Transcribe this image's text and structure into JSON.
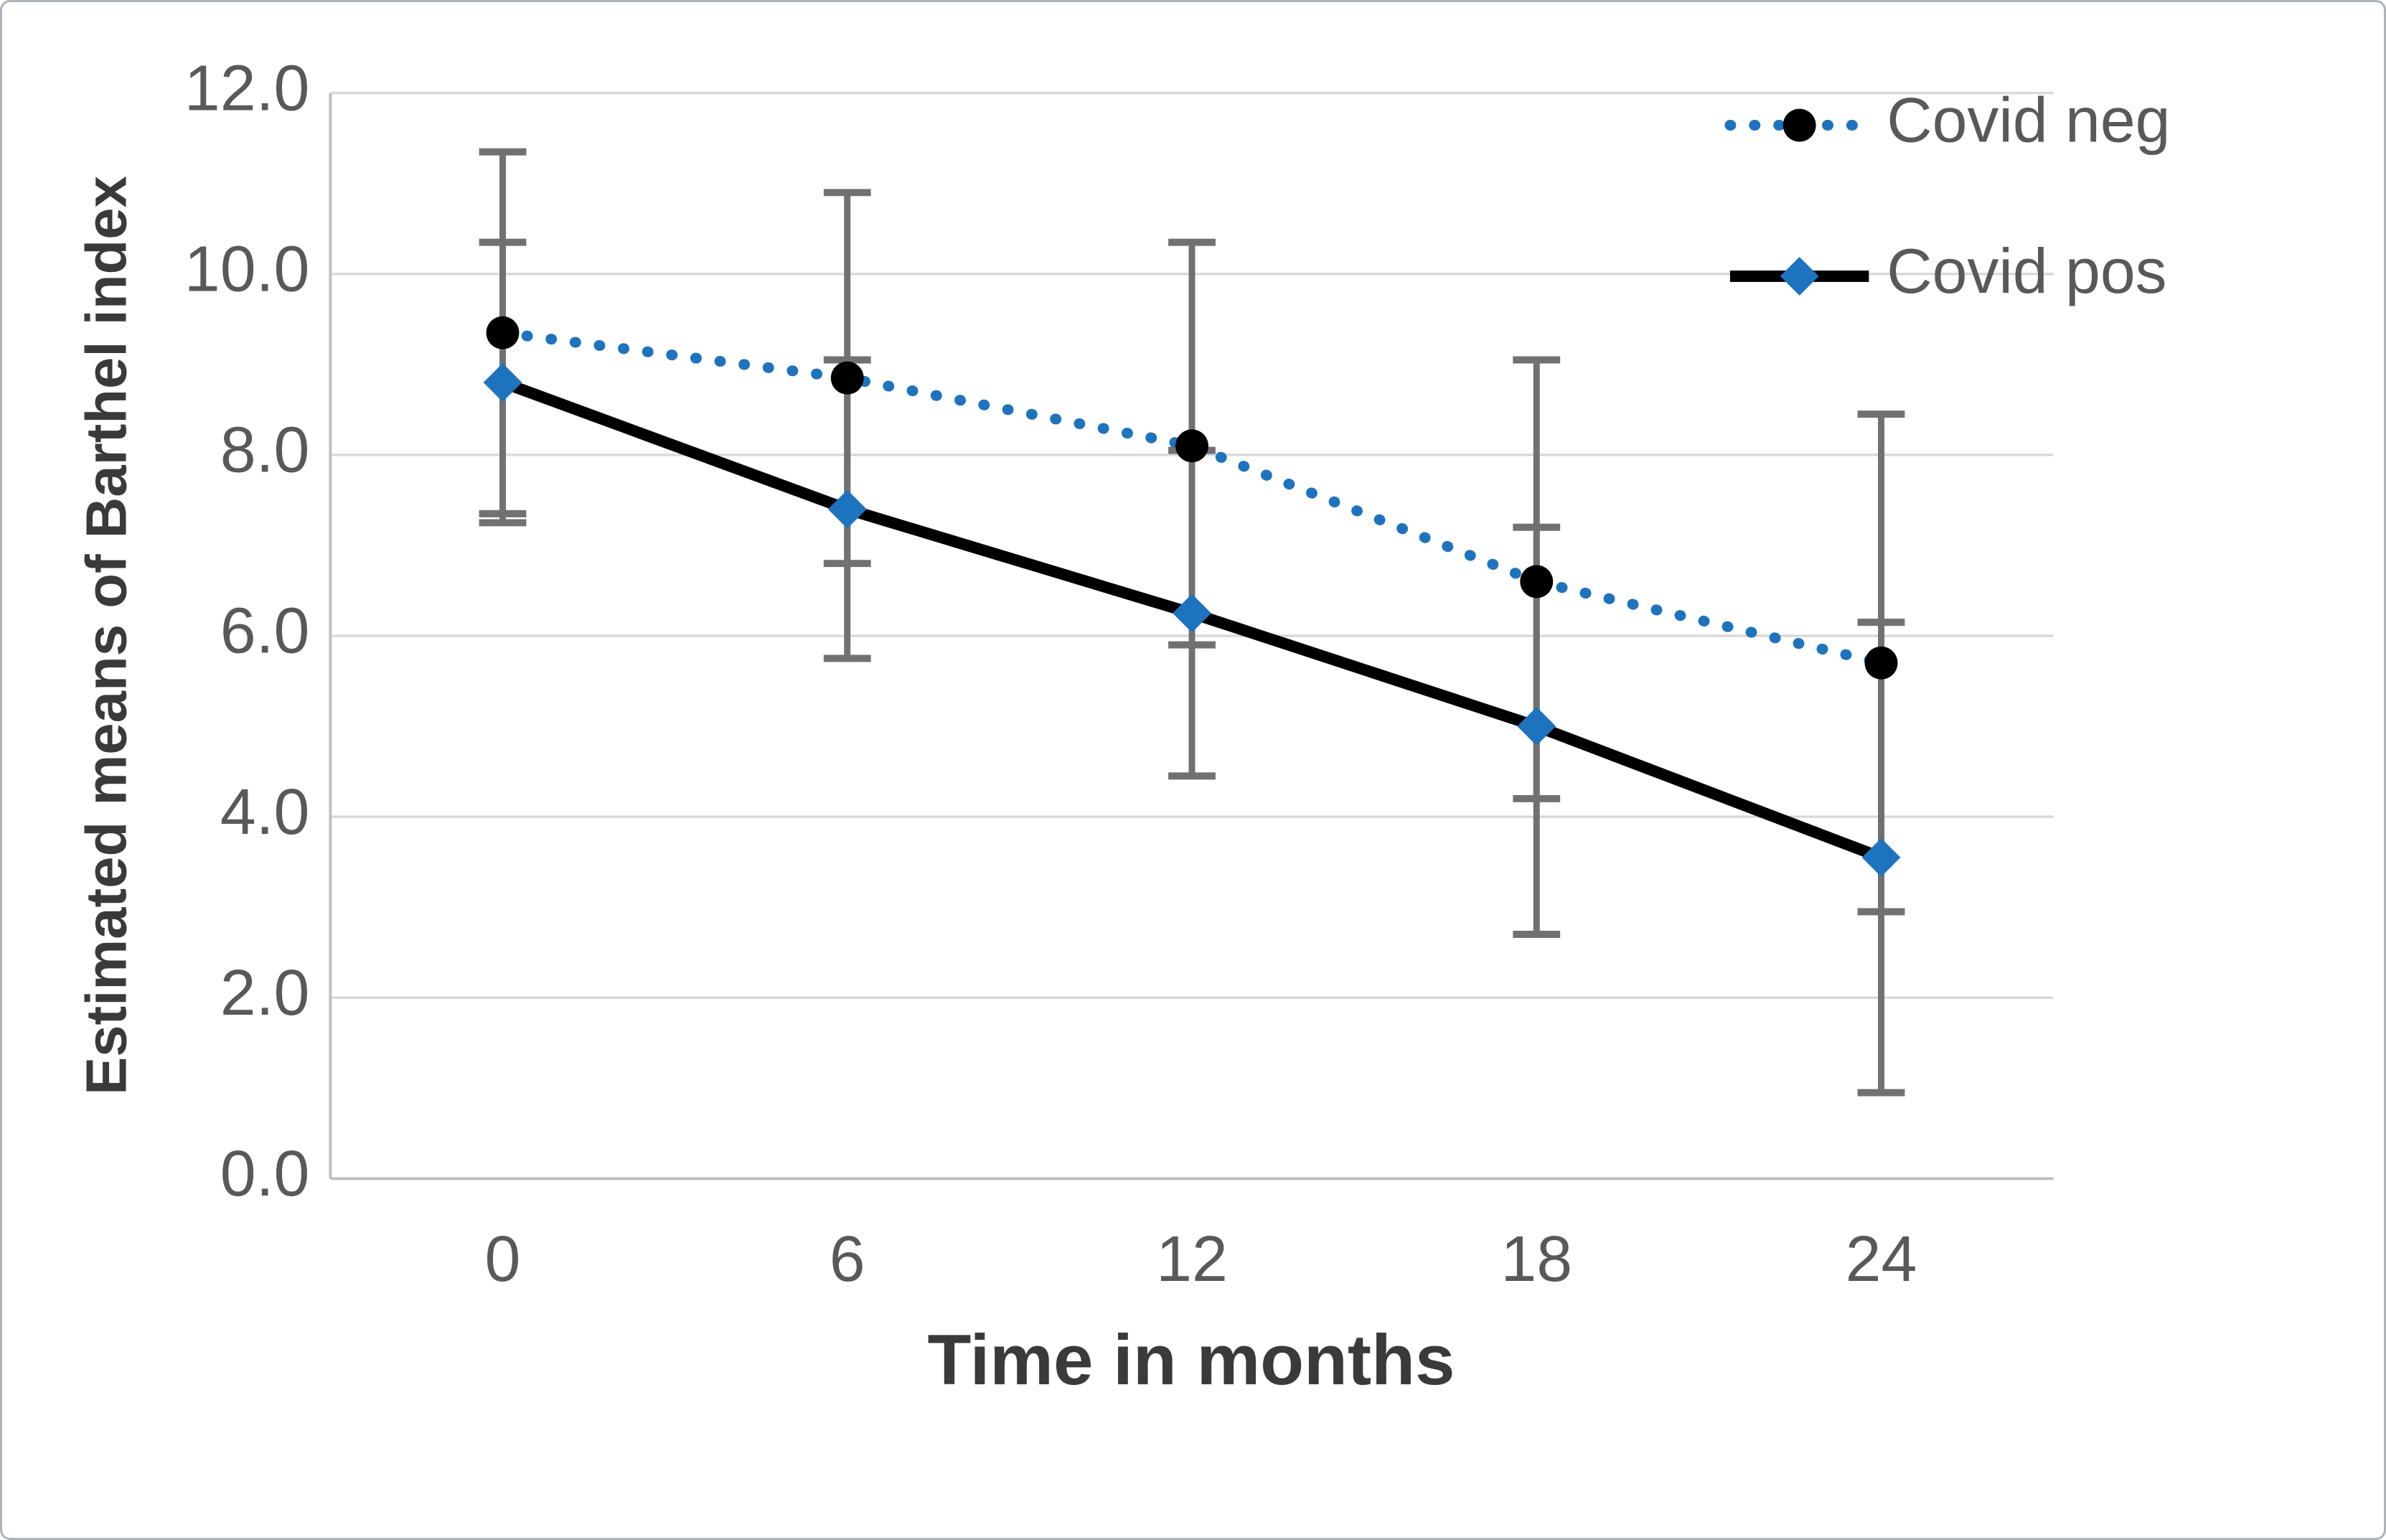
{
  "figure": {
    "background": "#ffffff",
    "border_color": "#aeb4b9"
  },
  "chart_data": {
    "type": "line",
    "title": "",
    "xlabel": "Time in months",
    "ylabel": "Estimated means of Barthel index",
    "categories": [
      0,
      6,
      12,
      18,
      24
    ],
    "x_tick_labels": [
      "0",
      "6",
      "12",
      "18",
      "24"
    ],
    "y_tick_labels": [
      "0.0",
      "2.0",
      "4.0",
      "6.0",
      "8.0",
      "10.0",
      "12.0"
    ],
    "ylim": [
      0,
      12
    ],
    "y_tick_step": 2,
    "grid": true,
    "legend_position": "top-right",
    "error_bars": true,
    "series": [
      {
        "name": "Covid neg",
        "line_style": "dotted",
        "line_color": "#1E73BE",
        "marker_shape": "circle",
        "marker_color": "#000000",
        "values": [
          9.35,
          8.85,
          8.1,
          6.6,
          5.7
        ],
        "ci_upper": [
          11.35,
          10.9,
          10.35,
          9.05,
          8.45
        ],
        "ci_lower": [
          7.35,
          6.8,
          5.9,
          4.2,
          2.95
        ]
      },
      {
        "name": "Covid pos",
        "line_style": "solid",
        "line_color": "#000000",
        "marker_shape": "diamond",
        "marker_color": "#1E73BE",
        "values": [
          8.8,
          7.4,
          6.25,
          5.0,
          3.55
        ],
        "ci_upper": [
          10.35,
          9.05,
          8.05,
          7.2,
          6.15
        ],
        "ci_lower": [
          7.25,
          5.75,
          4.45,
          2.7,
          0.95
        ]
      }
    ],
    "colors": {
      "error_bar": "#717171",
      "gridline": "#d9d9d9",
      "axis_line": "#bfbfbf",
      "tick_label": "#595959",
      "axis_title": "#3a3a3a",
      "legend_text": "#595959"
    }
  }
}
